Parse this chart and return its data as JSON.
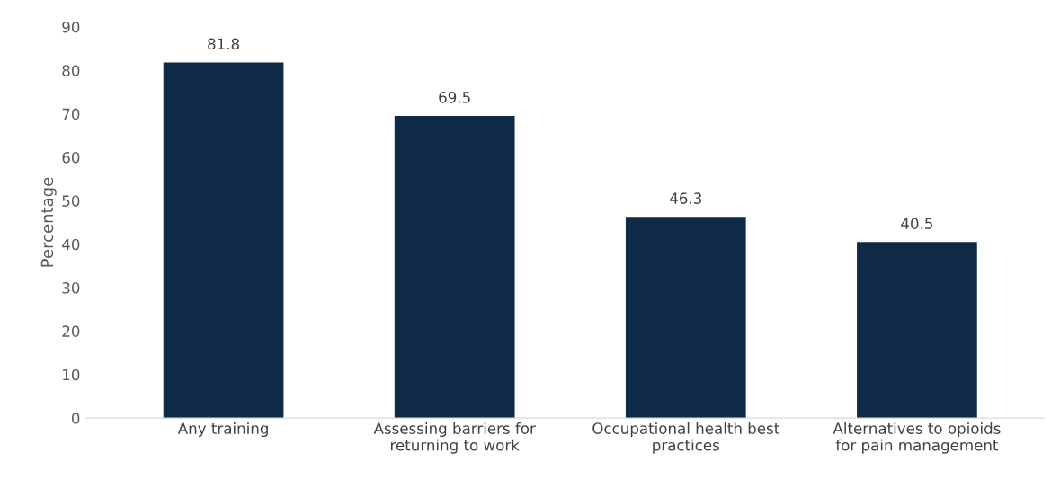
{
  "chart_data": {
    "type": "bar",
    "ylabel": "Percentage",
    "categories": [
      "Any training",
      "Assessing barriers for\nreturning to work",
      "Occupational health best\npractices",
      "Alternatives to opioids\nfor pain management"
    ],
    "values": [
      81.8,
      69.5,
      46.3,
      40.5
    ],
    "color": "#0e2a47",
    "ylim": [
      0,
      90
    ],
    "yticks": [
      0,
      10,
      20,
      30,
      40,
      50,
      60,
      70,
      80,
      90
    ],
    "data_labels": true
  }
}
